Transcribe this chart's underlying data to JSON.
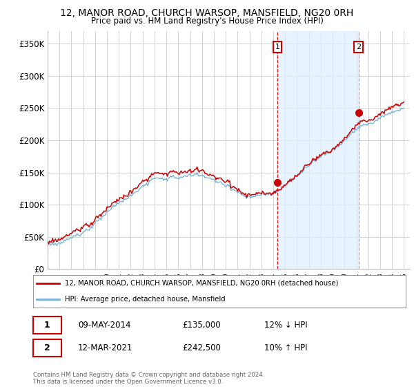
{
  "title": "12, MANOR ROAD, CHURCH WARSOP, MANSFIELD, NG20 0RH",
  "subtitle": "Price paid vs. HM Land Registry's House Price Index (HPI)",
  "ylim": [
    0,
    370000
  ],
  "yticks": [
    0,
    50000,
    100000,
    150000,
    200000,
    250000,
    300000,
    350000
  ],
  "ytick_labels": [
    "£0",
    "£50K",
    "£100K",
    "£150K",
    "£200K",
    "£250K",
    "£300K",
    "£350K"
  ],
  "sale1_date": "09-MAY-2014",
  "sale1_price": 135000,
  "sale1_label": "12% ↓ HPI",
  "sale1_x": 2014.35,
  "sale2_date": "12-MAR-2021",
  "sale2_price": 242500,
  "sale2_label": "10% ↑ HPI",
  "sale2_x": 2021.19,
  "hpi_color": "#6baed6",
  "price_color": "#cc0000",
  "vline1_color": "#cc0000",
  "vline2_color": "#aaaaaa",
  "shade_color": "#ddeeff",
  "dot_color": "#cc0000",
  "legend_label1": "12, MANOR ROAD, CHURCH WARSOP, MANSFIELD, NG20 0RH (detached house)",
  "legend_label2": "HPI: Average price, detached house, Mansfield",
  "footer1": "Contains HM Land Registry data © Crown copyright and database right 2024.",
  "footer2": "This data is licensed under the Open Government Licence v3.0.",
  "background_color": "#ffffff",
  "grid_color": "#cccccc",
  "annotation1_num": "1",
  "annotation2_num": "2",
  "xstart": 1995,
  "xend": 2025
}
